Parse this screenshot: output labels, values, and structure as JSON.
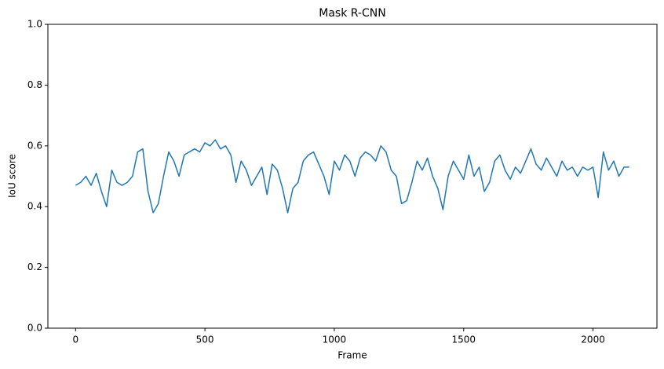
{
  "chart_data": {
    "type": "line",
    "title": "Mask R-CNN",
    "xlabel": "Frame",
    "ylabel": "IoU score",
    "x": [
      0,
      20,
      40,
      60,
      80,
      100,
      120,
      140,
      160,
      180,
      200,
      220,
      240,
      260,
      280,
      300,
      320,
      340,
      360,
      380,
      400,
      420,
      440,
      460,
      480,
      500,
      520,
      540,
      560,
      580,
      600,
      620,
      640,
      660,
      680,
      700,
      720,
      740,
      760,
      780,
      800,
      820,
      840,
      860,
      880,
      900,
      920,
      940,
      960,
      980,
      1000,
      1020,
      1040,
      1060,
      1080,
      1100,
      1120,
      1140,
      1160,
      1180,
      1200,
      1220,
      1240,
      1260,
      1280,
      1300,
      1320,
      1340,
      1360,
      1380,
      1400,
      1420,
      1440,
      1460,
      1480,
      1500,
      1520,
      1540,
      1560,
      1580,
      1600,
      1620,
      1640,
      1660,
      1680,
      1700,
      1720,
      1740,
      1760,
      1780,
      1800,
      1820,
      1840,
      1860,
      1880,
      1900,
      1920,
      1940,
      1960,
      1980,
      2000,
      2020,
      2040,
      2060,
      2080,
      2100,
      2120,
      2140
    ],
    "series": [
      {
        "name": "IoU",
        "color": "#1f77b4",
        "values": [
          0.47,
          0.48,
          0.5,
          0.47,
          0.51,
          0.45,
          0.4,
          0.52,
          0.48,
          0.47,
          0.48,
          0.5,
          0.58,
          0.59,
          0.45,
          0.38,
          0.41,
          0.5,
          0.58,
          0.55,
          0.5,
          0.57,
          0.58,
          0.59,
          0.58,
          0.61,
          0.6,
          0.62,
          0.59,
          0.6,
          0.57,
          0.48,
          0.55,
          0.52,
          0.47,
          0.5,
          0.53,
          0.44,
          0.54,
          0.52,
          0.46,
          0.38,
          0.46,
          0.48,
          0.55,
          0.57,
          0.58,
          0.54,
          0.5,
          0.44,
          0.55,
          0.52,
          0.57,
          0.55,
          0.5,
          0.56,
          0.58,
          0.57,
          0.55,
          0.6,
          0.58,
          0.52,
          0.5,
          0.41,
          0.42,
          0.48,
          0.55,
          0.52,
          0.56,
          0.5,
          0.46,
          0.39,
          0.5,
          0.55,
          0.52,
          0.49,
          0.57,
          0.5,
          0.53,
          0.45,
          0.48,
          0.55,
          0.57,
          0.52,
          0.49,
          0.53,
          0.51,
          0.55,
          0.59,
          0.54,
          0.52,
          0.56,
          0.53,
          0.5,
          0.55,
          0.52,
          0.53,
          0.5,
          0.53,
          0.52,
          0.53,
          0.43,
          0.58,
          0.52,
          0.55,
          0.5,
          0.53,
          0.53
        ]
      }
    ],
    "xlim": [
      -107,
      2247
    ],
    "ylim": [
      0,
      1
    ],
    "xticks": [
      0,
      500,
      1000,
      1500,
      2000
    ],
    "yticks": [
      {
        "value": 0,
        "label": "0.0"
      },
      0.2,
      0.4,
      0.6,
      0.8,
      {
        "value": 1,
        "label": "1.0"
      }
    ],
    "grid": false
  }
}
